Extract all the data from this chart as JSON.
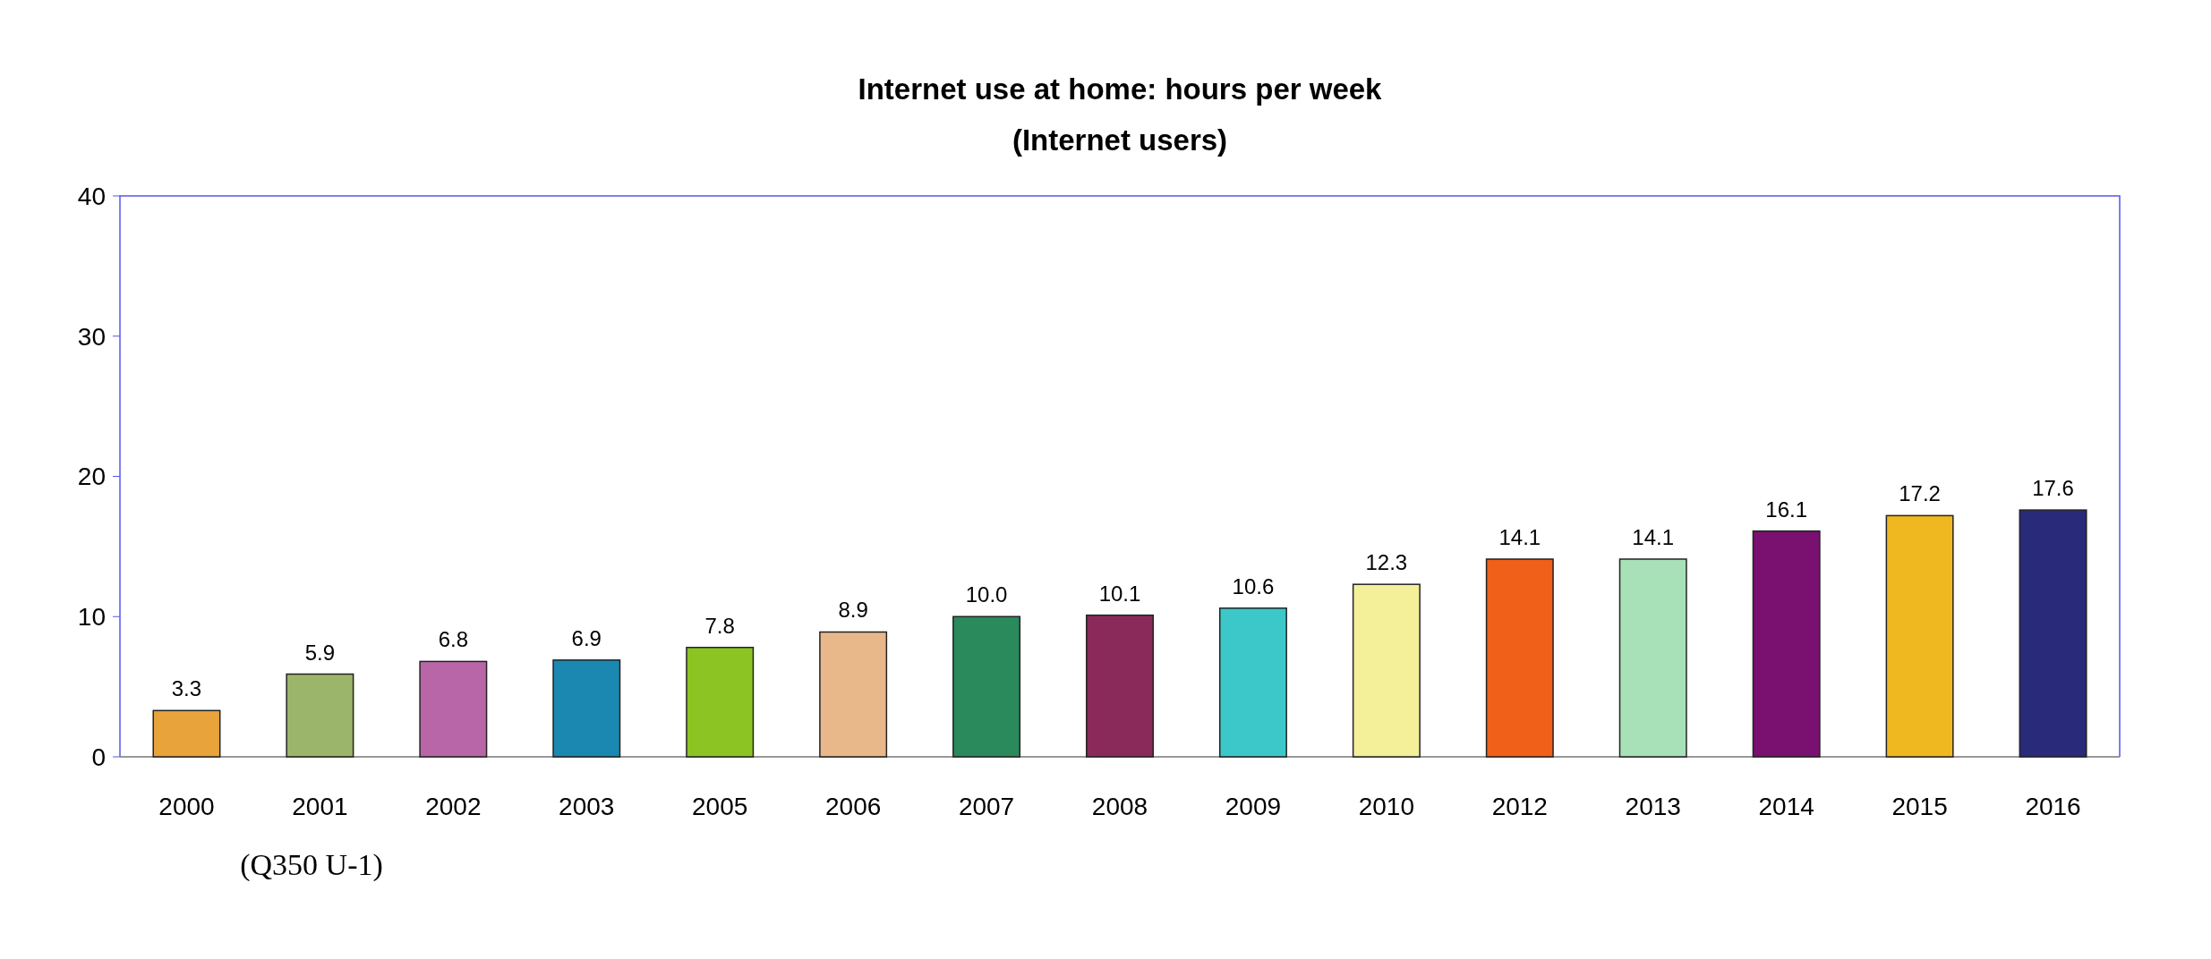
{
  "chart_data": {
    "type": "bar",
    "title": "Internet use at home: hours per week",
    "subtitle": "(Internet users)",
    "categories": [
      "2000",
      "2001",
      "2002",
      "2003",
      "2005",
      "2006",
      "2007",
      "2008",
      "2009",
      "2010",
      "2012",
      "2013",
      "2014",
      "2015",
      "2016"
    ],
    "values": [
      3.3,
      5.9,
      6.8,
      6.9,
      7.8,
      8.9,
      10.0,
      10.1,
      10.6,
      12.3,
      14.1,
      14.1,
      16.1,
      17.2,
      17.6
    ],
    "value_labels": [
      "3.3",
      "5.9",
      "6.8",
      "6.9",
      "7.8",
      "8.9",
      "10.0",
      "10.1",
      "10.6",
      "12.3",
      "14.1",
      "14.1",
      "16.1",
      "17.2",
      "17.6"
    ],
    "colors": [
      "#e8a33a",
      "#9bb56a",
      "#b966a8",
      "#1a88b0",
      "#8cc424",
      "#e8b88a",
      "#2a8a5c",
      "#8a2a5a",
      "#3cc8c8",
      "#f4f09a",
      "#f06018",
      "#a8e0b8",
      "#7a1070",
      "#f0b820",
      "#2a2a7a"
    ],
    "ylim": [
      0,
      40
    ],
    "yticks": [
      0,
      10,
      20,
      30,
      40
    ],
    "grid": false,
    "annotations": [
      "(Q350 U-1)"
    ]
  }
}
